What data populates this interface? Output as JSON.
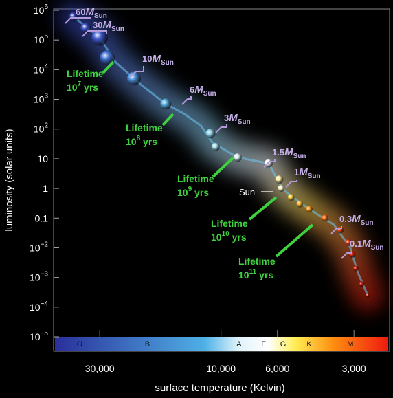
{
  "chart_data": {
    "type": "scatter",
    "xlabel": "surface temperature (Kelvin)",
    "ylabel": "luminosity (solar units)",
    "x_scale": "log-reversed",
    "y_scale": "log",
    "xlim": [
      45000,
      2200
    ],
    "ylim": [
      1e-05,
      1000000
    ],
    "x_ticks": [
      {
        "value": 30000,
        "label": "30,000"
      },
      {
        "value": 10000,
        "label": "10,000"
      },
      {
        "value": 6000,
        "label": "6,000"
      },
      {
        "value": 3000,
        "label": "3,000"
      }
    ],
    "y_ticks": [
      {
        "value": 1000000,
        "base": "10",
        "exp": "6"
      },
      {
        "value": 100000,
        "base": "10",
        "exp": "5"
      },
      {
        "value": 10000,
        "base": "10",
        "exp": "4"
      },
      {
        "value": 1000,
        "base": "10",
        "exp": "3"
      },
      {
        "value": 100,
        "base": "10",
        "exp": "2"
      },
      {
        "value": 10,
        "base": "10",
        "exp": ""
      },
      {
        "value": 1,
        "base": "1",
        "exp": ""
      },
      {
        "value": 0.1,
        "base": "0.1",
        "exp": ""
      },
      {
        "value": 0.01,
        "base": "10",
        "exp": "−2"
      },
      {
        "value": 0.001,
        "base": "10",
        "exp": "−3"
      },
      {
        "value": 0.0001,
        "base": "10",
        "exp": "−4"
      },
      {
        "value": 1e-05,
        "base": "10",
        "exp": "−5"
      }
    ],
    "spectral_classes": [
      {
        "label": "O",
        "temp": 36000
      },
      {
        "label": "B",
        "temp": 19500
      },
      {
        "label": "A",
        "temp": 8500
      },
      {
        "label": "F",
        "temp": 6800
      },
      {
        "label": "G",
        "temp": 5700
      },
      {
        "label": "K",
        "temp": 4500
      },
      {
        "label": "M",
        "temp": 3100
      }
    ],
    "stars": [
      {
        "temp": 38000,
        "lum": 600000,
        "color": "#2d3fb0",
        "r": 7
      },
      {
        "temp": 34000,
        "lum": 250000,
        "color": "#3549bd",
        "r": 8
      },
      {
        "temp": 30000,
        "lum": 120000,
        "color": "#3f5bd0",
        "r": 12
      },
      {
        "temp": 28000,
        "lum": 25000,
        "color": "#4775d8",
        "r": 11
      },
      {
        "temp": 22000,
        "lum": 5000,
        "color": "#4f95e0",
        "r": 10
      },
      {
        "temp": 16500,
        "lum": 700,
        "color": "#5bb4e6",
        "r": 8
      },
      {
        "temp": 11000,
        "lum": 70,
        "color": "#8fd6ef",
        "r": 7
      },
      {
        "temp": 10500,
        "lum": 25,
        "color": "#b0e4f3",
        "r": 6
      },
      {
        "temp": 8600,
        "lum": 11,
        "color": "#e6f6fb",
        "r": 6
      },
      {
        "temp": 6500,
        "lum": 7,
        "color": "#ffffff",
        "r": 6
      },
      {
        "temp": 5900,
        "lum": 2,
        "color": "#fff2a0",
        "r": 6
      },
      {
        "temp": 5800,
        "lum": 1,
        "color": "#fff8d0",
        "r": 5
      },
      {
        "temp": 5300,
        "lum": 0.5,
        "color": "#ffd43a",
        "r": 5
      },
      {
        "temp": 4900,
        "lum": 0.3,
        "color": "#ffb321",
        "r": 5
      },
      {
        "temp": 4500,
        "lum": 0.2,
        "color": "#ff9a1a",
        "r": 5
      },
      {
        "temp": 3900,
        "lum": 0.1,
        "color": "#ff6b12",
        "r": 5
      },
      {
        "temp": 3400,
        "lum": 0.04,
        "color": "#f04410",
        "r": 5
      },
      {
        "temp": 3150,
        "lum": 0.015,
        "color": "#e6300e",
        "r": 5
      },
      {
        "temp": 3050,
        "lum": 0.006,
        "color": "#dd240c",
        "r": 5
      },
      {
        "temp": 2950,
        "lum": 0.002,
        "color": "#d31c0b",
        "r": 4
      },
      {
        "temp": 2800,
        "lum": 0.0006,
        "color": "#c9150a",
        "r": 4
      },
      {
        "temp": 2650,
        "lum": 0.00025,
        "color": "#c01008",
        "r": 3
      }
    ],
    "track": [
      {
        "temp": 38000,
        "lum": 600000
      },
      {
        "temp": 30000,
        "lum": 120000
      },
      {
        "temp": 26000,
        "lum": 18000
      },
      {
        "temp": 21000,
        "lum": 3500
      },
      {
        "temp": 16500,
        "lum": 700
      },
      {
        "temp": 14000,
        "lum": 330
      },
      {
        "temp": 12000,
        "lum": 130
      },
      {
        "temp": 10800,
        "lum": 35
      },
      {
        "temp": 8600,
        "lum": 11
      },
      {
        "temp": 6500,
        "lum": 7
      },
      {
        "temp": 5900,
        "lum": 1.5
      },
      {
        "temp": 5600,
        "lum": 0.8
      },
      {
        "temp": 4500,
        "lum": 0.2
      },
      {
        "temp": 3600,
        "lum": 0.06
      },
      {
        "temp": 3100,
        "lum": 0.01
      },
      {
        "temp": 2900,
        "lum": 0.0015
      },
      {
        "temp": 2650,
        "lum": 0.00025
      }
    ],
    "mass_labels": [
      {
        "value": "60",
        "unit": "M",
        "sub": "Sun",
        "temp": 38000,
        "lum": 600000
      },
      {
        "value": "30",
        "unit": "M",
        "sub": "Sun",
        "temp": 34000,
        "lum": 250000
      },
      {
        "value": "10",
        "unit": "M",
        "sub": "Sun",
        "temp": 28000,
        "lum": 25000
      },
      {
        "value": "6",
        "unit": "M",
        "sub": "Sun",
        "temp": 16500,
        "lum": 700
      },
      {
        "value": "3",
        "unit": "M",
        "sub": "Sun",
        "temp": 11000,
        "lum": 70
      },
      {
        "value": "1.5",
        "unit": "M",
        "sub": "Sun",
        "temp": 6500,
        "lum": 7
      },
      {
        "value": "1",
        "unit": "M",
        "sub": "Sun",
        "temp": 5800,
        "lum": 1
      },
      {
        "value": "0.3",
        "unit": "M",
        "sub": "Sun",
        "temp": 3400,
        "lum": 0.04
      },
      {
        "value": "0.1",
        "unit": "M",
        "sub": "Sun",
        "temp": 3050,
        "lum": 0.006
      }
    ],
    "lifetime_labels": [
      {
        "title": "Lifetime",
        "base": "10",
        "exp": "7",
        "unit": "yrs"
      },
      {
        "title": "Lifetime",
        "base": "10",
        "exp": "8",
        "unit": "yrs"
      },
      {
        "title": "Lifetime",
        "base": "10",
        "exp": "9",
        "unit": "yrs"
      },
      {
        "title": "Lifetime",
        "base": "10",
        "exp": "10",
        "unit": "yrs"
      },
      {
        "title": "Lifetime",
        "base": "10",
        "exp": "11",
        "unit": "yrs"
      }
    ],
    "sun_label": "Sun"
  }
}
